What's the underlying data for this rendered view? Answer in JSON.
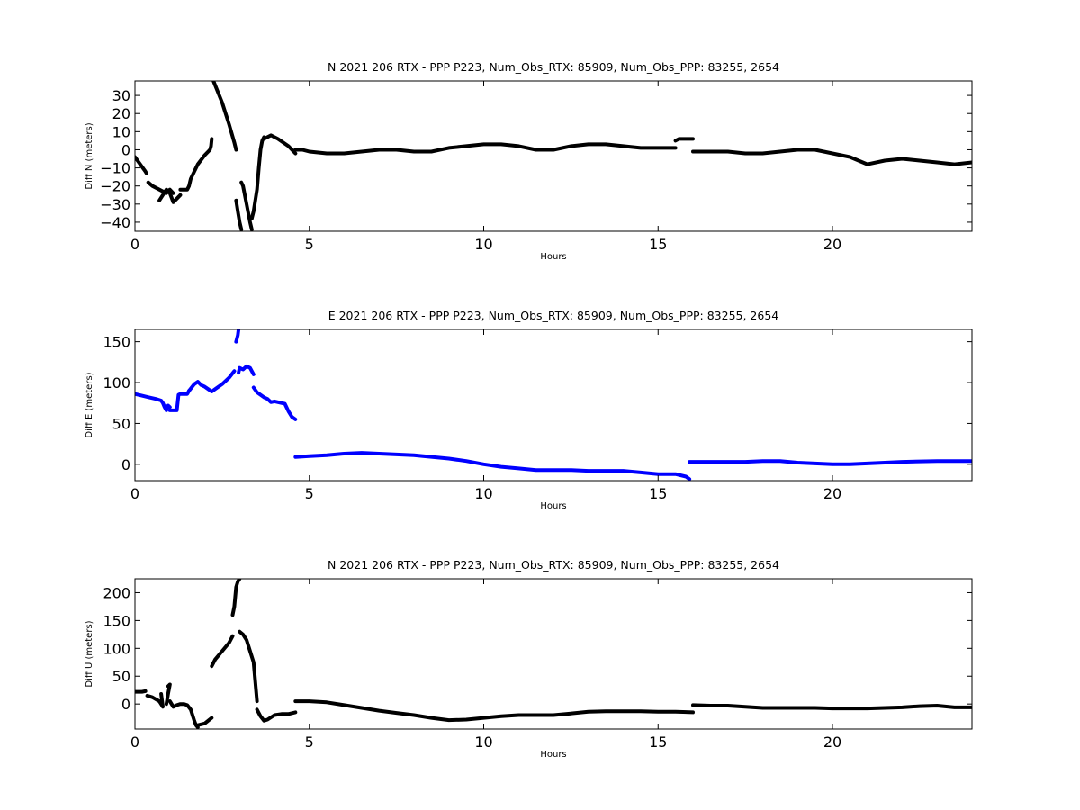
{
  "chart_data": [
    {
      "type": "scatter",
      "title": "N 2021 206 RTX - PPP  P223, Num_Obs_RTX: 85909, Num_Obs_PPP: 83255, 2654",
      "xlabel": "Hours",
      "ylabel": "Diff N (meters)",
      "xlim": [
        0,
        24
      ],
      "ylim": [
        -45,
        38
      ],
      "xticks": [
        0,
        5,
        10,
        15,
        20
      ],
      "yticks": [
        -40,
        -30,
        -20,
        -10,
        0,
        10,
        20,
        30
      ],
      "grid": false,
      "color": "#000000",
      "series": [
        {
          "x": [
            0.0,
            0.15,
            0.3,
            0.33
          ],
          "y": [
            -4,
            -8,
            -12,
            -13
          ]
        },
        {
          "x": [
            0.38,
            0.5,
            0.7,
            0.9,
            1.0,
            1.1
          ],
          "y": [
            -18,
            -20,
            -22,
            -24,
            -22,
            -24
          ]
        },
        {
          "x": [
            0.7,
            0.9,
            1.0,
            1.1,
            1.2,
            1.3
          ],
          "y": [
            -28,
            -22,
            -24,
            -29,
            -27,
            -25
          ]
        },
        {
          "x": [
            1.3,
            1.5,
            1.55,
            1.6,
            1.7,
            1.8,
            2.0,
            2.1,
            2.15,
            2.18,
            2.2
          ],
          "y": [
            -22,
            -22,
            -20,
            -16,
            -12,
            -8,
            -3,
            -1,
            0,
            2,
            6
          ]
        },
        {
          "x": [
            2.25,
            2.5,
            2.7,
            2.85,
            2.9
          ],
          "y": [
            38,
            26,
            14,
            4,
            0
          ]
        },
        {
          "x": [
            2.9,
            2.95,
            3.0,
            3.05
          ],
          "y": [
            -28,
            -34,
            -40,
            -44
          ]
        },
        {
          "x": [
            3.05,
            3.1,
            3.2,
            3.3,
            3.35
          ],
          "y": [
            -18,
            -20,
            -30,
            -40,
            -44
          ]
        },
        {
          "x": [
            3.35,
            3.4,
            3.5,
            3.55,
            3.6,
            3.65,
            3.7
          ],
          "y": [
            -38,
            -34,
            -22,
            -10,
            0,
            5,
            7
          ]
        },
        {
          "x": [
            3.7,
            3.9,
            4.1,
            4.4,
            4.6
          ],
          "y": [
            6,
            8,
            6,
            2,
            -2
          ]
        },
        {
          "x": [
            4.6,
            4.8,
            5.0,
            5.5,
            6.0,
            6.5,
            7.0,
            7.5,
            8.0,
            8.5,
            9.0,
            9.5,
            10.0,
            10.5,
            11.0,
            11.5,
            12.0,
            12.5,
            13.0,
            13.5,
            14.0,
            14.5,
            15.0,
            15.5
          ],
          "y": [
            0,
            0,
            -1,
            -2,
            -2,
            -1,
            0,
            0,
            -1,
            -1,
            1,
            2,
            3,
            3,
            2,
            0,
            0,
            2,
            3,
            3,
            2,
            1,
            1,
            1
          ]
        },
        {
          "x": [
            15.5,
            15.6,
            16.0
          ],
          "y": [
            5,
            6,
            6
          ]
        },
        {
          "x": [
            16.0,
            16.5,
            17.0,
            17.5,
            18.0,
            18.5,
            19.0,
            19.5,
            20.0,
            20.5,
            21.0,
            21.5,
            22.0,
            22.5,
            23.0,
            23.5,
            24.0
          ],
          "y": [
            -1,
            -1,
            -1,
            -2,
            -2,
            -1,
            0,
            0,
            -2,
            -4,
            -8,
            -6,
            -5,
            -6,
            -7,
            -8,
            -7
          ]
        }
      ]
    },
    {
      "type": "scatter",
      "title": "E 2021 206 RTX - PPP  P223, Num_Obs_RTX: 85909, Num_Obs_PPP: 83255, 2654",
      "xlabel": "Hours",
      "ylabel": "Diff E (meters)",
      "xlim": [
        0,
        24
      ],
      "ylim": [
        -20,
        165
      ],
      "xticks": [
        0,
        5,
        10,
        15,
        20
      ],
      "yticks": [
        0,
        50,
        100,
        150
      ],
      "grid": false,
      "color": "#0000ff",
      "series": [
        {
          "x": [
            0.0,
            0.2,
            0.4,
            0.6,
            0.75,
            0.8,
            0.85,
            0.9,
            0.95,
            1.0
          ],
          "y": [
            86,
            84,
            82,
            80,
            78,
            75,
            70,
            66,
            72,
            70
          ]
        },
        {
          "x": [
            1.0,
            1.2,
            1.25,
            1.3,
            1.5,
            1.55
          ],
          "y": [
            66,
            66,
            85,
            86,
            86,
            90
          ]
        },
        {
          "x": [
            1.55,
            1.7,
            1.8,
            1.9,
            2.0,
            2.1,
            2.2,
            2.3,
            2.5,
            2.7,
            2.85
          ],
          "y": [
            90,
            98,
            101,
            97,
            95,
            92,
            89,
            92,
            98,
            106,
            114
          ]
        },
        {
          "x": [
            2.9,
            2.95,
            2.97
          ],
          "y": [
            150,
            158,
            165
          ]
        },
        {
          "x": [
            2.97,
            3.0,
            3.1,
            3.2,
            3.3,
            3.4
          ],
          "y": [
            112,
            118,
            116,
            120,
            118,
            110
          ]
        },
        {
          "x": [
            3.4,
            3.5,
            3.6,
            3.7,
            3.8,
            3.9,
            4.0,
            4.1,
            4.3,
            4.4,
            4.5,
            4.6
          ],
          "y": [
            94,
            88,
            85,
            82,
            80,
            76,
            77,
            76,
            74,
            65,
            58,
            55
          ]
        },
        {
          "x": [
            4.6,
            5.0,
            5.5,
            6.0,
            6.5,
            7.0,
            8.0,
            9.0,
            9.5,
            10.0,
            10.5,
            11.0,
            11.5,
            12.0,
            12.5,
            13.0,
            13.5,
            14.0,
            14.5,
            15.0,
            15.5,
            15.8,
            15.9
          ],
          "y": [
            9,
            10,
            11,
            13,
            14,
            13,
            11,
            7,
            4,
            0,
            -3,
            -5,
            -7,
            -7,
            -7,
            -8,
            -8,
            -8,
            -10,
            -12,
            -12,
            -15,
            -18
          ]
        },
        {
          "x": [
            15.9,
            16.0,
            17.0,
            17.5,
            18.0,
            18.5,
            19.0,
            19.5,
            20.0,
            20.5,
            21.0,
            21.5,
            22.0,
            23.0,
            24.0
          ],
          "y": [
            3,
            3,
            3,
            3,
            4,
            4,
            2,
            1,
            0,
            0,
            1,
            2,
            3,
            4,
            4
          ]
        }
      ]
    },
    {
      "type": "scatter",
      "title": "N 2021 206 RTX - PPP  P223, Num_Obs_RTX: 85909, Num_Obs_PPP: 83255, 2654",
      "xlabel": "Hours",
      "ylabel": "Diff U (meters)",
      "xlim": [
        0,
        24
      ],
      "ylim": [
        -45,
        225
      ],
      "xticks": [
        0,
        5,
        10,
        15,
        20
      ],
      "yticks": [
        0,
        50,
        100,
        150,
        200
      ],
      "grid": false,
      "color": "#000000",
      "series": [
        {
          "x": [
            0.0,
            0.2,
            0.3
          ],
          "y": [
            22,
            22,
            23
          ]
        },
        {
          "x": [
            0.35,
            0.5,
            0.7,
            0.8,
            0.75
          ],
          "y": [
            15,
            12,
            5,
            -5,
            18
          ]
        },
        {
          "x": [
            0.9,
            0.95,
            1.0,
            0.95
          ],
          "y": [
            0,
            18,
            35,
            32
          ]
        },
        {
          "x": [
            1.0,
            1.1,
            1.2,
            1.3,
            1.4,
            1.5,
            1.6,
            1.7,
            1.75,
            1.8
          ],
          "y": [
            5,
            -5,
            -2,
            0,
            0,
            -2,
            -10,
            -30,
            -38,
            -42
          ]
        },
        {
          "x": [
            1.8,
            2.0,
            2.1,
            2.2
          ],
          "y": [
            -38,
            -35,
            -30,
            -25
          ]
        },
        {
          "x": [
            2.2,
            2.3,
            2.5,
            2.7,
            2.8
          ],
          "y": [
            68,
            80,
            95,
            110,
            122
          ]
        },
        {
          "x": [
            2.8,
            2.85,
            2.9,
            2.95,
            3.0
          ],
          "y": [
            160,
            175,
            210,
            220,
            225
          ]
        },
        {
          "x": [
            3.0,
            3.1,
            3.2,
            3.3,
            3.4,
            3.5
          ],
          "y": [
            130,
            125,
            115,
            95,
            75,
            5
          ]
        },
        {
          "x": [
            3.5,
            3.6,
            3.7,
            3.8,
            4.0,
            4.2,
            4.4,
            4.6
          ],
          "y": [
            -10,
            -22,
            -30,
            -28,
            -20,
            -18,
            -18,
            -15
          ]
        },
        {
          "x": [
            4.6,
            5.0,
            5.5,
            6.0,
            6.5,
            7.0,
            7.5,
            8.0,
            8.5,
            9.0,
            9.5,
            10.0,
            10.5,
            11.0,
            11.5,
            12.0,
            12.5,
            13.0,
            13.5,
            14.0,
            14.5,
            15.0,
            15.5,
            16.0
          ],
          "y": [
            5,
            5,
            3,
            -2,
            -7,
            -12,
            -16,
            -20,
            -25,
            -29,
            -28,
            -25,
            -22,
            -20,
            -20,
            -20,
            -17,
            -14,
            -13,
            -13,
            -13,
            -14,
            -14,
            -15
          ]
        },
        {
          "x": [
            16.0,
            16.5,
            17.0,
            17.5,
            18.0,
            18.5,
            19.0,
            19.5,
            20.0,
            20.5,
            21.0,
            21.5,
            22.0,
            22.5,
            23.0,
            23.5,
            24.0
          ],
          "y": [
            -2,
            -3,
            -3,
            -5,
            -7,
            -7,
            -7,
            -7,
            -8,
            -8,
            -8,
            -7,
            -6,
            -4,
            -3,
            -6,
            -6
          ]
        }
      ]
    }
  ]
}
